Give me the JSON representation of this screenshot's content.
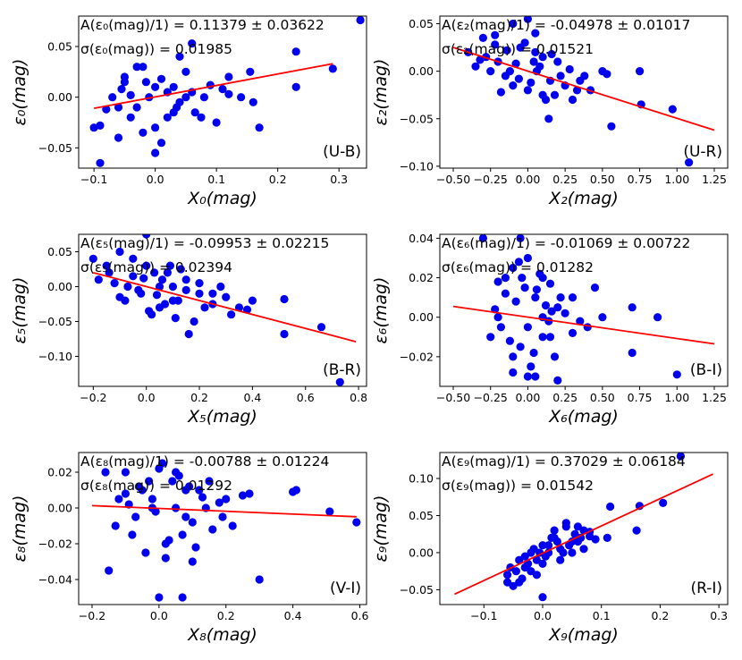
{
  "chart_data": [
    {
      "type": "scatter",
      "pair_label": "(U-B)",
      "xlabel": "X₀(mag)",
      "ylabel": "ε₀(mag)",
      "annotation_a": "A(ε₀(mag)/1) = 0.11379 ± 0.03622",
      "annotation_sigma": "σ(ε₀(mag)) = 0.01985",
      "xlim": [
        -0.125,
        0.345
      ],
      "ylim": [
        -0.07,
        0.08
      ],
      "xticks": [
        -0.1,
        0.0,
        0.1,
        0.2,
        0.3
      ],
      "xtick_labels": [
        "−0.1",
        "0.0",
        "0.1",
        "0.2",
        "0.3"
      ],
      "yticks": [
        -0.05,
        0.0,
        0.05
      ],
      "ytick_labels": [
        "−0.05",
        "0.00",
        "0.05"
      ],
      "fit_line": {
        "x": [
          -0.1,
          0.29
        ],
        "y": [
          -0.011,
          0.033
        ]
      },
      "points": {
        "x": [
          0.335,
          0.29,
          0.23,
          0.23,
          0.155,
          0.16,
          0.12,
          0.06,
          0.04,
          -0.02,
          -0.05,
          -0.09,
          -0.1,
          -0.09,
          -0.06,
          0.01,
          0.0,
          -0.02,
          0.03,
          0.05,
          0.06,
          0.075,
          0.09,
          0.11,
          0.14,
          0.17,
          -0.04,
          -0.03,
          0.0,
          0.02,
          -0.07,
          -0.06,
          -0.05,
          -0.01,
          0.03,
          0.04,
          0.08,
          0.1,
          -0.08,
          -0.04,
          0.01,
          0.05,
          -0.03,
          0.02,
          0.0,
          -0.015,
          0.035,
          -0.055,
          0.065,
          0.12
        ],
        "y": [
          0.076,
          0.028,
          0.045,
          0.01,
          0.025,
          -0.005,
          0.02,
          0.053,
          0.04,
          0.03,
          0.015,
          -0.065,
          -0.03,
          -0.028,
          -0.04,
          -0.045,
          -0.055,
          -0.035,
          -0.015,
          0.0,
          0.005,
          -0.02,
          0.012,
          0.008,
          0.0,
          -0.03,
          0.002,
          -0.01,
          0.01,
          -0.02,
          0.0,
          -0.01,
          0.02,
          0.0,
          0.01,
          -0.005,
          0.0,
          -0.025,
          -0.012,
          -0.02,
          0.018,
          0.025,
          0.03,
          0.005,
          -0.03,
          0.015,
          -0.01,
          0.008,
          -0.015,
          0.003
        ]
      }
    },
    {
      "type": "scatter",
      "pair_label": "(U-R)",
      "xlabel": "X₂(mag)",
      "ylabel": "ε₂(mag)",
      "annotation_a": "A(ε₂(mag)/1) = -0.04978 ± 0.01017",
      "annotation_sigma": "σ(ε₂(mag)) = 0.01521",
      "xlim": [
        -0.59,
        1.34
      ],
      "ylim": [
        -0.102,
        0.058
      ],
      "xticks": [
        -0.5,
        -0.25,
        0.0,
        0.25,
        0.5,
        0.75,
        1.0,
        1.25
      ],
      "xtick_labels": [
        "−0.50",
        "−0.25",
        "0.00",
        "0.25",
        "0.50",
        "0.75",
        "1.00",
        "1.25"
      ],
      "yticks": [
        -0.1,
        -0.05,
        0.0,
        0.05
      ],
      "ytick_labels": [
        "−0.10",
        "−0.05",
        "0.00",
        "0.05"
      ],
      "fit_line": {
        "x": [
          -0.5,
          1.25
        ],
        "y": [
          0.025,
          -0.062
        ]
      },
      "points": {
        "x": [
          1.08,
          0.97,
          0.76,
          0.75,
          0.56,
          0.53,
          0.5,
          0.38,
          0.33,
          0.14,
          -0.22,
          -0.3,
          -0.4,
          -0.1,
          0.0,
          0.05,
          -0.2,
          -0.15,
          0.1,
          0.2,
          0.25,
          0.3,
          -0.05,
          -0.25,
          -0.35,
          0.15,
          0.0,
          -0.1,
          0.05,
          0.18,
          -0.28,
          -0.12,
          0.08,
          0.22,
          -0.18,
          0.12,
          -0.02,
          0.28,
          -0.08,
          0.02,
          -0.22,
          0.35,
          0.42,
          -0.32,
          0.06,
          0.16,
          -0.14,
          -0.06,
          0.1,
          0.04
        ],
        "y": [
          -0.096,
          -0.04,
          -0.035,
          0.0,
          -0.058,
          -0.003,
          0.0,
          -0.005,
          -0.02,
          -0.05,
          0.038,
          0.035,
          0.02,
          0.05,
          0.055,
          0.04,
          0.01,
          -0.005,
          0.015,
          0.01,
          -0.015,
          -0.03,
          0.025,
          0.0,
          0.005,
          -0.01,
          -0.02,
          -0.015,
          0.02,
          -0.025,
          0.015,
          0.0,
          0.005,
          -0.005,
          -0.022,
          -0.03,
          0.03,
          0.002,
          0.008,
          -0.012,
          0.028,
          -0.01,
          -0.02,
          0.012,
          0.0,
          0.018,
          0.022,
          -0.008,
          -0.025,
          0.01
        ]
      }
    },
    {
      "type": "scatter",
      "pair_label": "(B-R)",
      "xlabel": "X₅(mag)",
      "ylabel": "ε₅(mag)",
      "annotation_a": "A(ε₅(mag)/1) = -0.09953 ± 0.02215",
      "annotation_sigma": "σ(ε₅(mag)) = 0.02394",
      "xlim": [
        -0.255,
        0.83
      ],
      "ylim": [
        -0.143,
        0.075
      ],
      "xticks": [
        -0.2,
        0.0,
        0.2,
        0.4,
        0.6,
        0.8
      ],
      "xtick_labels": [
        "−0.2",
        "0.0",
        "0.2",
        "0.4",
        "0.6",
        "0.8"
      ],
      "yticks": [
        -0.1,
        -0.05,
        0.0,
        0.05
      ],
      "ytick_labels": [
        "−0.10",
        "−0.05",
        "0.00",
        "0.05"
      ],
      "fit_line": {
        "x": [
          -0.2,
          0.79
        ],
        "y": [
          0.02,
          -0.079
        ]
      },
      "points": {
        "x": [
          0.73,
          0.66,
          0.52,
          0.52,
          0.38,
          0.35,
          0.3,
          0.25,
          0.2,
          0.15,
          0.1,
          0.05,
          0.0,
          -0.05,
          -0.1,
          -0.15,
          -0.2,
          -0.18,
          -0.08,
          0.02,
          0.12,
          0.22,
          0.28,
          0.15,
          0.08,
          -0.02,
          -0.12,
          0.0,
          0.05,
          0.1,
          -0.05,
          0.18,
          0.25,
          -0.1,
          0.03,
          0.07,
          -0.03,
          0.13,
          0.32,
          0.4,
          -0.07,
          0.16,
          0.06,
          -0.14,
          0.01,
          0.2,
          0.11,
          -0.01,
          0.09,
          0.04
        ],
        "y": [
          -0.137,
          -0.058,
          -0.068,
          -0.018,
          -0.033,
          -0.03,
          -0.015,
          -0.025,
          -0.01,
          -0.005,
          -0.02,
          0.0,
          0.075,
          0.04,
          0.05,
          0.03,
          0.04,
          0.01,
          -0.02,
          -0.04,
          -0.02,
          -0.03,
          0.0,
          0.01,
          0.02,
          -0.01,
          0.005,
          0.03,
          -0.03,
          0.0,
          0.015,
          -0.05,
          -0.01,
          -0.015,
          0.02,
          -0.025,
          -0.005,
          0.025,
          -0.04,
          -0.02,
          0.0,
          -0.068,
          0.01,
          0.02,
          -0.035,
          0.005,
          -0.045,
          0.012,
          0.03,
          -0.012
        ]
      }
    },
    {
      "type": "scatter",
      "pair_label": "(B-I)",
      "xlabel": "X₆(mag)",
      "ylabel": "ε₆(mag)",
      "annotation_a": "A(ε₆(mag)/1) = -0.01069 ± 0.00722",
      "annotation_sigma": "σ(ε₆(mag)) = 0.01282",
      "xlim": [
        -0.59,
        1.34
      ],
      "ylim": [
        -0.035,
        0.042
      ],
      "xticks": [
        -0.5,
        -0.25,
        0.0,
        0.25,
        0.5,
        0.75,
        1.0,
        1.25
      ],
      "xtick_labels": [
        "−0.50",
        "−0.25",
        "0.00",
        "0.25",
        "0.50",
        "0.75",
        "1.00",
        "1.25"
      ],
      "yticks": [
        -0.02,
        0.0,
        0.02,
        0.04
      ],
      "ytick_labels": [
        "−0.02",
        "0.00",
        "0.02",
        "0.04"
      ],
      "fit_line": {
        "x": [
          -0.5,
          1.25
        ],
        "y": [
          0.0055,
          -0.0135
        ]
      },
      "points": {
        "x": [
          1.0,
          0.87,
          0.7,
          0.7,
          0.5,
          0.45,
          0.4,
          0.35,
          0.3,
          0.2,
          0.15,
          0.1,
          0.05,
          0.0,
          -0.05,
          -0.1,
          -0.15,
          -0.2,
          -0.25,
          -0.3,
          -0.1,
          0.05,
          0.2,
          0.25,
          0.15,
          -0.05,
          -0.15,
          0.0,
          0.1,
          -0.2,
          0.18,
          -0.08,
          0.08,
          -0.12,
          0.02,
          0.12,
          -0.02,
          0.3,
          -0.18,
          0.22,
          0.04,
          -0.06,
          0.14,
          -0.22,
          0.06,
          -0.1,
          0.16,
          0.0,
          -0.04,
          0.1
        ],
        "y": [
          -0.029,
          0.0,
          -0.018,
          0.005,
          0.0,
          0.015,
          -0.005,
          -0.002,
          0.01,
          -0.032,
          0.017,
          0.02,
          -0.03,
          0.03,
          0.04,
          0.025,
          0.02,
          0.0,
          -0.01,
          0.04,
          -0.02,
          0.01,
          0.005,
          0.002,
          -0.01,
          -0.015,
          0.012,
          -0.005,
          0.0,
          0.018,
          -0.02,
          0.008,
          0.022,
          -0.012,
          -0.025,
          0.006,
          0.015,
          -0.008,
          -0.005,
          0.01,
          -0.018,
          0.028,
          -0.002,
          0.004,
          0.014,
          -0.028,
          0.003,
          -0.03,
          0.02,
          -0.01
        ]
      }
    },
    {
      "type": "scatter",
      "pair_label": "(V-I)",
      "xlabel": "X₈(mag)",
      "ylabel": "ε₈(mag)",
      "annotation_a": "A(ε₈(mag)/1) = -0.00788 ± 0.01224",
      "annotation_sigma": "σ(ε₈(mag)) = 0.01292",
      "xlim": [
        -0.24,
        0.62
      ],
      "ylim": [
        -0.054,
        0.031
      ],
      "xticks": [
        -0.2,
        0.0,
        0.2,
        0.4,
        0.6
      ],
      "xtick_labels": [
        "−0.2",
        "0.0",
        "0.2",
        "0.4",
        "0.6"
      ],
      "yticks": [
        -0.04,
        -0.02,
        0.0,
        0.02
      ],
      "ytick_labels": [
        "−0.04",
        "−0.02",
        "0.00",
        "0.02"
      ],
      "fit_line": {
        "x": [
          -0.2,
          0.59
        ],
        "y": [
          0.0013,
          -0.0049
        ]
      },
      "points": {
        "x": [
          0.59,
          0.51,
          0.41,
          0.4,
          0.3,
          0.27,
          0.25,
          0.2,
          0.15,
          0.1,
          0.07,
          0.05,
          0.0,
          -0.05,
          -0.1,
          -0.15,
          -0.16,
          -0.02,
          0.08,
          0.12,
          0.18,
          0.22,
          -0.08,
          -0.12,
          0.02,
          0.04,
          -0.06,
          0.1,
          0.14,
          -0.04,
          0.06,
          0.16,
          -0.1,
          0.0,
          0.03,
          -0.02,
          0.09,
          0.11,
          -0.07,
          0.05,
          0.13,
          -0.13,
          0.01,
          0.07,
          -0.03,
          0.19,
          -0.09,
          0.02,
          0.08,
          -0.01
        ],
        "y": [
          -0.008,
          -0.002,
          0.01,
          0.009,
          -0.04,
          0.008,
          0.007,
          0.005,
          0.015,
          -0.03,
          -0.05,
          0.02,
          -0.05,
          0.01,
          0.02,
          -0.035,
          0.02,
          0.0,
          -0.005,
          0.01,
          0.003,
          -0.01,
          -0.015,
          0.005,
          -0.02,
          0.015,
          0.012,
          -0.008,
          0.0,
          -0.025,
          0.018,
          -0.012,
          0.008,
          0.022,
          -0.018,
          0.005,
          0.012,
          -0.022,
          -0.005,
          0.0,
          0.006,
          -0.01,
          0.025,
          -0.015,
          0.015,
          -0.005,
          0.002,
          -0.028,
          0.01,
          -0.002
        ]
      }
    },
    {
      "type": "scatter",
      "pair_label": "(R-I)",
      "xlabel": "X₉(mag)",
      "ylabel": "ε₉(mag)",
      "annotation_a": "A(ε₉(mag)/1) = 0.37029 ± 0.06184",
      "annotation_sigma": "σ(ε₉(mag)) = 0.01542",
      "xlim": [
        -0.175,
        0.315
      ],
      "ylim": [
        -0.07,
        0.135
      ],
      "xticks": [
        -0.1,
        0.0,
        0.1,
        0.2,
        0.3
      ],
      "xtick_labels": [
        "−0.1",
        "0.0",
        "0.1",
        "0.2",
        "0.3"
      ],
      "yticks": [
        -0.05,
        0.0,
        0.05,
        0.1
      ],
      "ytick_labels": [
        "−0.05",
        "0.00",
        "0.05",
        "0.10"
      ],
      "fit_line": {
        "x": [
          -0.15,
          0.29
        ],
        "y": [
          -0.056,
          0.106
        ]
      },
      "points": {
        "x": [
          0.235,
          0.205,
          0.165,
          0.16,
          0.115,
          0.11,
          0.08,
          0.06,
          0.04,
          0.02,
          0.0,
          -0.02,
          -0.04,
          -0.06,
          -0.05,
          -0.03,
          -0.01,
          0.01,
          0.03,
          0.05,
          0.07,
          -0.045,
          -0.025,
          0.015,
          0.035,
          0.055,
          -0.035,
          -0.015,
          0.005,
          0.025,
          0.045,
          0.065,
          -0.055,
          -0.005,
          0.0,
          0.02,
          0.04,
          0.03,
          0.01,
          -0.02,
          -0.04,
          0.05,
          0.06,
          -0.06,
          -0.01,
          0.07,
          0.08,
          -0.03,
          0.0,
          0.09
        ],
        "y": [
          0.13,
          0.067,
          0.063,
          0.03,
          0.062,
          0.02,
          0.028,
          0.035,
          0.04,
          0.02,
          -0.06,
          0.0,
          -0.04,
          -0.03,
          -0.045,
          -0.02,
          -0.01,
          0.01,
          0.005,
          0.015,
          0.03,
          -0.025,
          -0.015,
          0.02,
          0.0,
          0.025,
          -0.035,
          0.005,
          -0.005,
          0.015,
          0.01,
          0.02,
          -0.02,
          0.0,
          0.01,
          0.03,
          0.035,
          -0.01,
          0.0,
          -0.025,
          -0.01,
          0.0,
          0.015,
          -0.04,
          -0.03,
          0.005,
          0.022,
          -0.005,
          -0.015,
          0.018
        ]
      }
    }
  ],
  "colors": {
    "points": "#0000ee",
    "fit": "#ff0000",
    "axes": "#000000",
    "background": "#ffffff"
  }
}
